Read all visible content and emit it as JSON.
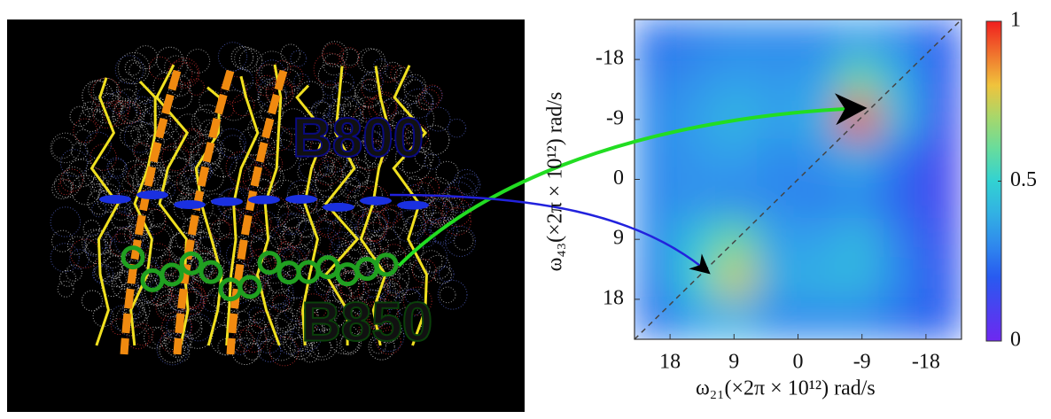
{
  "image_labels": [
    "B800",
    "B850"
  ],
  "chart_data": {
    "type": "heatmap",
    "x_label": "ω₂₁(×2π × 10¹²) rad/s",
    "y_label": "ω₄₃(×2π × 10¹²) rad/s",
    "xlim": [
      23,
      -23
    ],
    "ylim": [
      -24,
      24
    ],
    "xticks": [
      18,
      9,
      0,
      -9,
      -18
    ],
    "yticks": [
      -18,
      -9,
      0,
      9,
      18
    ],
    "x": [
      20.1,
      14.4,
      8.6,
      2.9,
      -2.9,
      -8.6,
      -14.4,
      -20.1
    ],
    "y": [
      -21,
      -15,
      -9,
      -3,
      3,
      9,
      15,
      21
    ],
    "z": [
      [
        0.25,
        0.28,
        0.3,
        0.3,
        0.3,
        0.35,
        0.3,
        0.2
      ],
      [
        0.28,
        0.32,
        0.35,
        0.33,
        0.35,
        0.6,
        0.4,
        0.18
      ],
      [
        0.3,
        0.35,
        0.42,
        0.35,
        0.4,
        0.95,
        0.45,
        0.15
      ],
      [
        0.3,
        0.33,
        0.35,
        0.3,
        0.32,
        0.4,
        0.25,
        0.12
      ],
      [
        0.3,
        0.32,
        0.3,
        0.3,
        0.28,
        0.3,
        0.22,
        0.12
      ],
      [
        0.3,
        0.45,
        0.6,
        0.35,
        0.35,
        0.42,
        0.28,
        0.15
      ],
      [
        0.28,
        0.5,
        0.75,
        0.38,
        0.4,
        0.42,
        0.3,
        0.18
      ],
      [
        0.25,
        0.35,
        0.4,
        0.3,
        0.3,
        0.3,
        0.25,
        0.2
      ]
    ],
    "colorbar": {
      "lim": [
        0,
        1
      ],
      "ticks": [
        0,
        0.5,
        1
      ]
    }
  }
}
